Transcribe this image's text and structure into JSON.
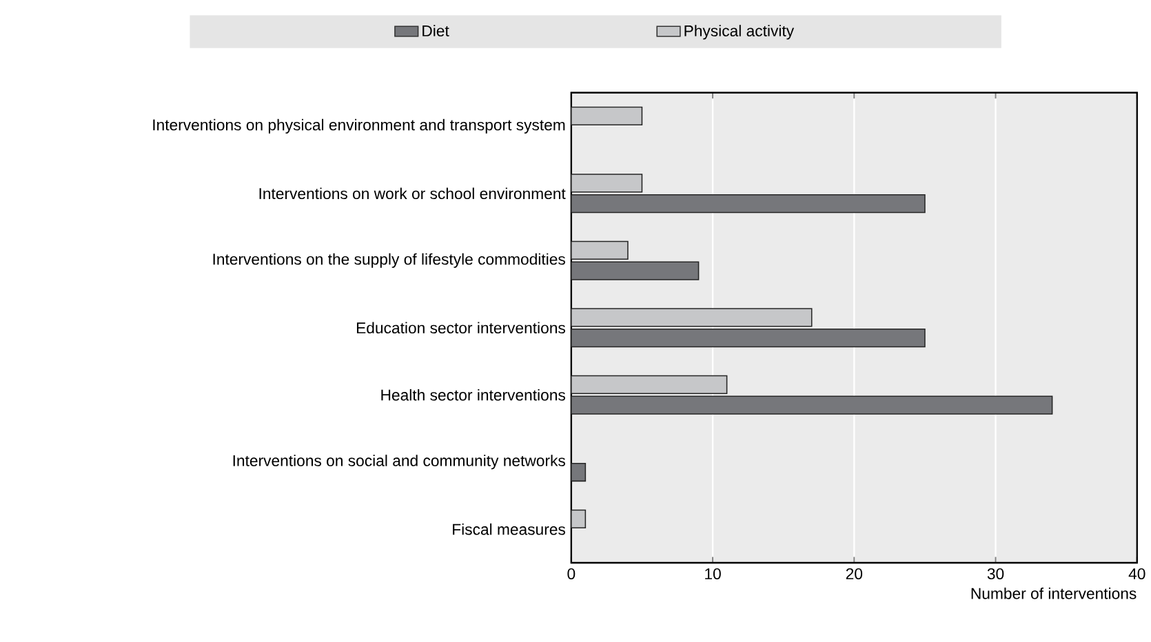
{
  "chart_data": {
    "type": "bar",
    "orientation": "horizontal",
    "xlabel": "Number of interventions",
    "categories": [
      "Interventions on physical environment and transport system",
      "Interventions on work or school environment",
      "Interventions on the supply of lifestyle commodities",
      "Education sector interventions",
      "Health sector interventions",
      "Interventions on social and community networks",
      "Fiscal measures"
    ],
    "series": [
      {
        "name": "Diet",
        "color": "#76777b",
        "values": [
          null,
          25,
          9,
          25,
          34,
          1,
          null
        ]
      },
      {
        "name": "Physical activity",
        "color": "#c6c7c9",
        "values": [
          5,
          5,
          4,
          17,
          11,
          null,
          1
        ]
      }
    ],
    "xlim": [
      0,
      40
    ],
    "xticks": [
      0,
      10,
      20,
      30,
      40
    ],
    "grid": "x",
    "legend": "top"
  }
}
